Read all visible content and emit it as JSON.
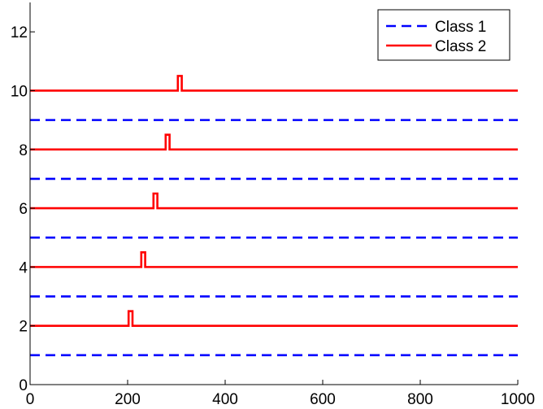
{
  "chart_data": {
    "type": "line",
    "title": "",
    "xlabel": "",
    "ylabel": "",
    "xlim": [
      0,
      1000
    ],
    "ylim": [
      0,
      13
    ],
    "xticks": [
      0,
      200,
      400,
      600,
      800,
      1000
    ],
    "yticks": [
      0,
      2,
      4,
      6,
      8,
      10,
      12
    ],
    "grid": false,
    "legend_position": "top-right",
    "series": [
      {
        "name": "Class 1",
        "style": "dashed",
        "color": "#0000ff",
        "lines": [
          {
            "baseline": 1
          },
          {
            "baseline": 3
          },
          {
            "baseline": 5
          },
          {
            "baseline": 7
          },
          {
            "baseline": 9
          }
        ]
      },
      {
        "name": "Class 2",
        "style": "solid",
        "color": "#ff0000",
        "lines": [
          {
            "baseline": 2,
            "pulse_start": 202,
            "pulse_end": 210,
            "pulse_height": 0.5
          },
          {
            "baseline": 4,
            "pulse_start": 228,
            "pulse_end": 236,
            "pulse_height": 0.5
          },
          {
            "baseline": 6,
            "pulse_start": 253,
            "pulse_end": 261,
            "pulse_height": 0.5
          },
          {
            "baseline": 8,
            "pulse_start": 278,
            "pulse_end": 286,
            "pulse_height": 0.5
          },
          {
            "baseline": 10,
            "pulse_start": 303,
            "pulse_end": 311,
            "pulse_height": 0.5
          }
        ]
      }
    ]
  }
}
